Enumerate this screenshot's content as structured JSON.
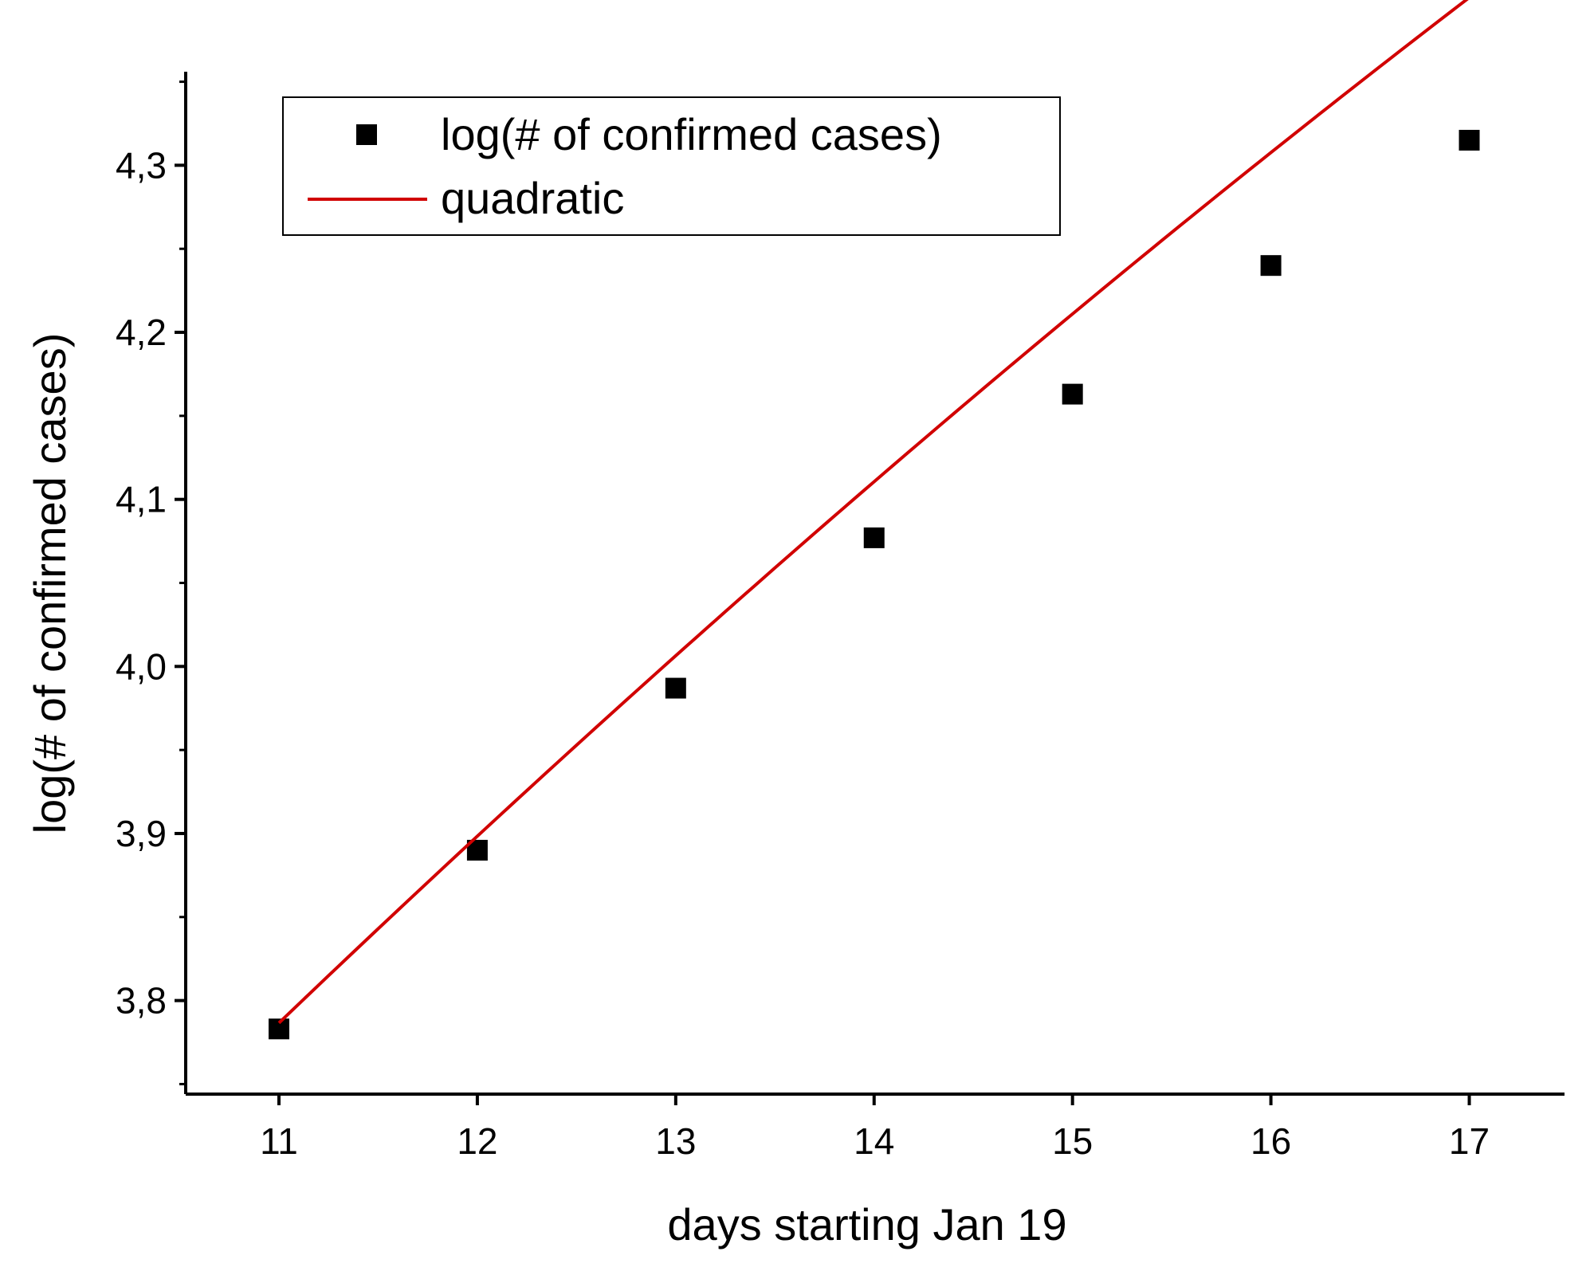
{
  "chart_data": {
    "type": "scatter",
    "xlabel": "days starting Jan 19",
    "ylabel": "log(# of confirmed cases)",
    "xlim": [
      10.53,
      17.48
    ],
    "ylim": [
      3.744,
      4.356
    ],
    "x_ticks": [
      11,
      12,
      13,
      14,
      15,
      16,
      17
    ],
    "x_tick_labels": [
      "11",
      "12",
      "13",
      "14",
      "15",
      "16",
      "17"
    ],
    "y_major_ticks": [
      3.8,
      3.9,
      4.0,
      4.1,
      4.2,
      4.3
    ],
    "y_tick_labels": [
      "3,8",
      "3,9",
      "4,0",
      "4,1",
      "4,2",
      "4,3"
    ],
    "y_minor_ticks": [
      3.75,
      3.85,
      3.95,
      4.05,
      4.15,
      4.25,
      4.35
    ],
    "grid": false,
    "legend_position": "top-left",
    "series": [
      {
        "name": "log(# of confirmed cases)",
        "kind": "scatter",
        "marker": "square",
        "color": "#000000",
        "x": [
          11,
          12,
          13,
          14,
          15,
          16,
          17
        ],
        "y": [
          3.783,
          3.89,
          3.987,
          4.077,
          4.163,
          4.24,
          4.315
        ]
      },
      {
        "name": "quadratic",
        "kind": "line",
        "color": "#d10000",
        "coefficients": {
          "a": -0.0019,
          "b": 0.1555,
          "c": 2.306
        },
        "x_range": [
          11,
          17
        ]
      }
    ]
  }
}
